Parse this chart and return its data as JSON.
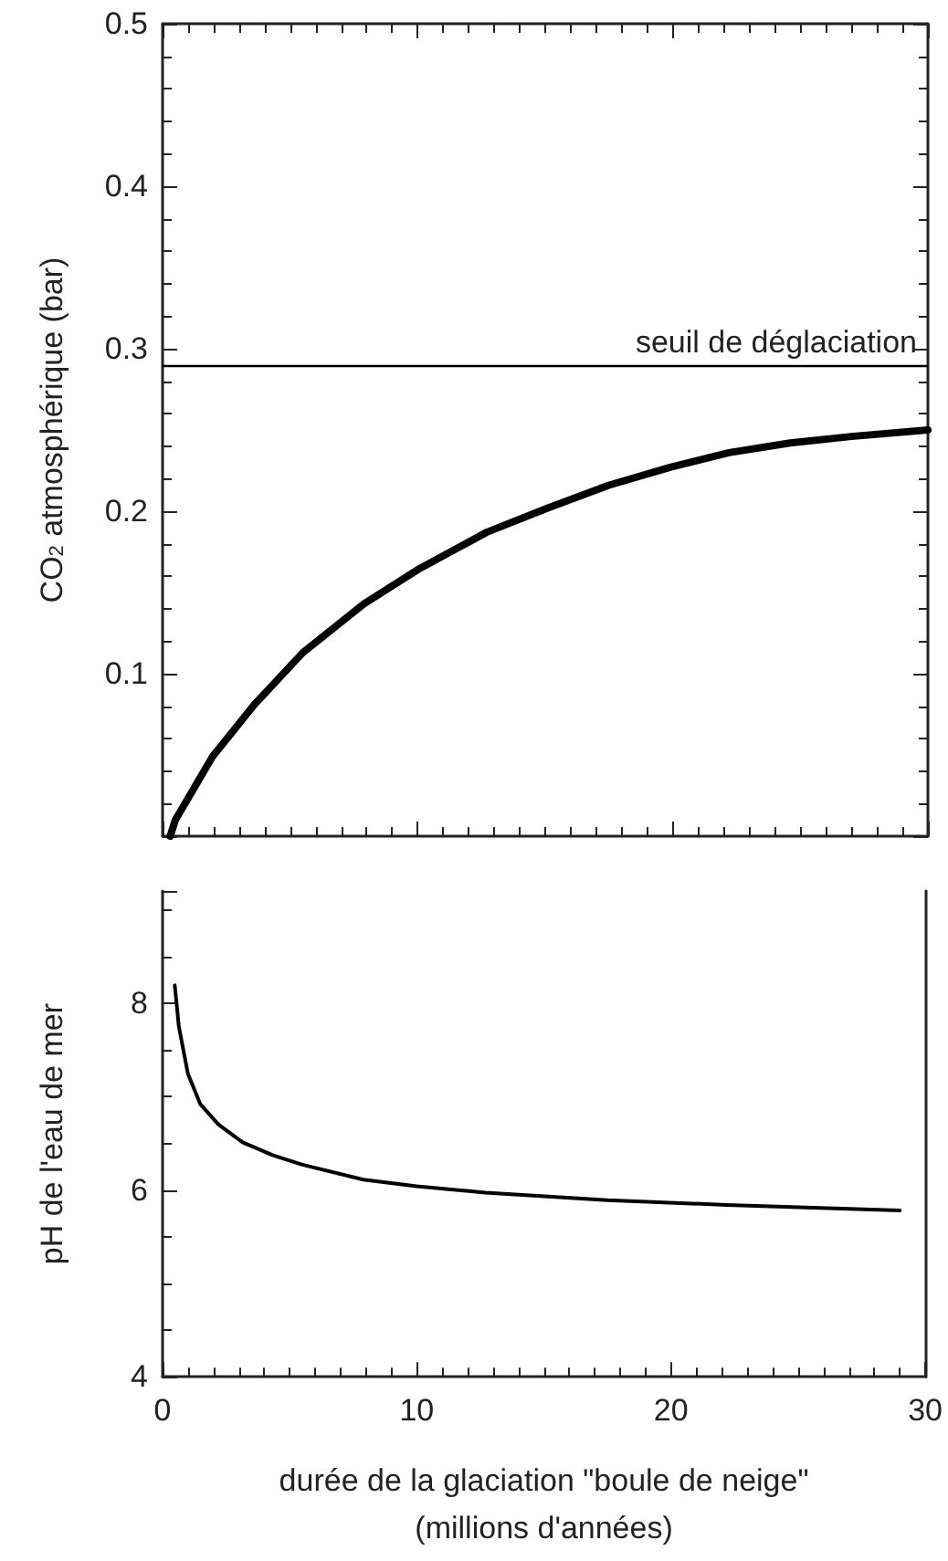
{
  "chart_data": [
    {
      "type": "line",
      "ylabel": "CO$_{2}$ atmosphérique (bar)",
      "xlim": [
        0,
        30
      ],
      "xticks": [
        {
          "value": 0,
          "label": null
        },
        {
          "value": 10,
          "label": null
        },
        {
          "value": 20,
          "label": null
        },
        {
          "value": 30,
          "label": null
        }
      ],
      "ylim": [
        0,
        0.5
      ],
      "yticks": [
        {
          "value": 0,
          "label": null
        },
        0.1,
        0.2,
        0.3,
        0.4,
        0.5
      ],
      "tick_labels": "y",
      "marker": "none",
      "series": [
        {
          "color": "#000000",
          "x": [
            0.3,
            0.5,
            1.96,
            3.6,
            5.5,
            7.9,
            10,
            12.7,
            15.1,
            17.5,
            19.9,
            22.2,
            24.6,
            27,
            30
          ],
          "values": [
            0,
            0.01,
            0.049,
            0.081,
            0.113,
            0.143,
            0.164,
            0.187,
            0.202,
            0.216,
            0.227,
            0.236,
            0.242,
            0.246,
            0.25
          ]
        }
      ],
      "ref_lines": [
        {
          "axis": "y",
          "value": 0.29,
          "label": "seuil de déglaciation",
          "color": "#000000"
        }
      ]
    },
    {
      "type": "line",
      "ylabel": "pH de l'eau de mer",
      "xlabel": "durée de la glaciation \"boule de neige\"\n(millions d'années)",
      "xlim": [
        0,
        30
      ],
      "xticks": [
        0,
        10,
        20,
        30
      ],
      "ylim": [
        4,
        9.2
      ],
      "yticks": [
        4,
        6,
        8
      ],
      "marker": "none",
      "series": [
        {
          "color": "#000000",
          "x": [
            0.48,
            0.64,
            1.0,
            1.48,
            2.2,
            3.15,
            4.35,
            5.5,
            7.9,
            10,
            12.7,
            17.5,
            22.2,
            29
          ],
          "values": [
            8.19,
            7.75,
            7.24,
            6.92,
            6.7,
            6.51,
            6.37,
            6.27,
            6.11,
            6.04,
            5.97,
            5.89,
            5.84,
            5.78
          ]
        }
      ]
    }
  ]
}
